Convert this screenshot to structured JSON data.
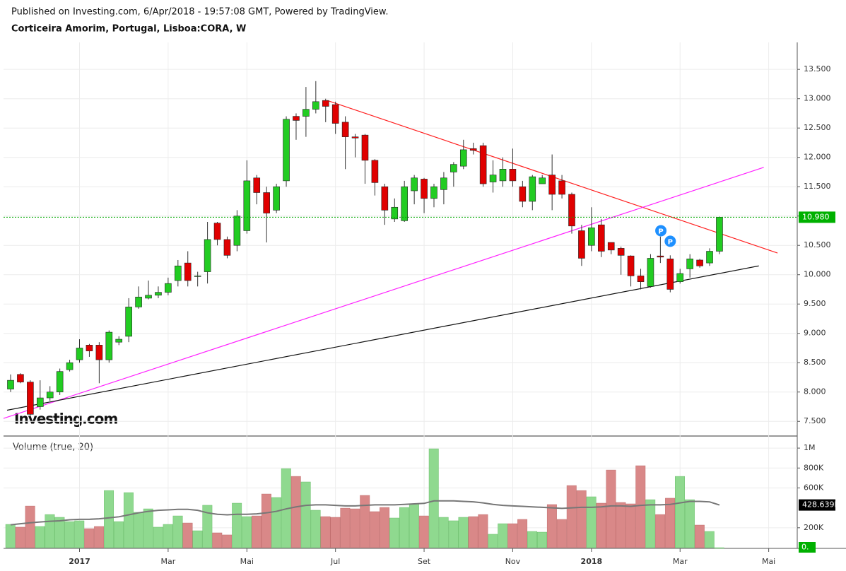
{
  "chart_data": {
    "type": "candlestick",
    "published": "Published on Investing.com, 6/Apr/2018 - 19:57:08 GMT, Powered by TradingView.",
    "title": "Corticeira Amorim, Portugal, Lisboa:CORA, W",
    "watermark": "Investing.com",
    "volume_title": "Volume (true, 20)",
    "categories": [
      null,
      null,
      null,
      null,
      null,
      null,
      null,
      "2017",
      null,
      null,
      null,
      null,
      null,
      null,
      null,
      null,
      "Mar",
      null,
      null,
      null,
      null,
      null,
      null,
      null,
      "Mai",
      null,
      null,
      null,
      null,
      null,
      null,
      null,
      null,
      "Jul",
      null,
      null,
      null,
      null,
      null,
      null,
      null,
      null,
      "Set",
      null,
      null,
      null,
      null,
      null,
      null,
      null,
      null,
      "Nov",
      null,
      null,
      null,
      null,
      null,
      null,
      null,
      "2018",
      null,
      null,
      null,
      null,
      null,
      null,
      null,
      null,
      "Mar",
      null,
      null,
      null,
      null,
      null,
      null,
      null,
      null,
      "Mai"
    ],
    "open": [
      8.05,
      8.3,
      8.17,
      7.75,
      7.9,
      8.0,
      8.38,
      8.55,
      8.8,
      8.8,
      8.55,
      8.85,
      8.95,
      9.45,
      9.6,
      9.65,
      9.7,
      9.9,
      10.2,
      9.98,
      10.05,
      10.88,
      10.6,
      10.5,
      10.75,
      11.65,
      11.4,
      11.1,
      11.6,
      12.7,
      12.7,
      12.82,
      12.97,
      12.9,
      12.6,
      12.35,
      12.38,
      11.95,
      11.5,
      10.95,
      10.92,
      11.43,
      11.63,
      11.3,
      11.45,
      11.75,
      11.85,
      12.15,
      12.2,
      11.58,
      11.6,
      11.8,
      11.5,
      11.25,
      11.55,
      11.7,
      11.6,
      11.37,
      10.75,
      10.5,
      10.85,
      10.55,
      10.45,
      10.32,
      9.98,
      9.8,
      10.32,
      10.27,
      9.88,
      10.1,
      10.25,
      10.2,
      10.4,
      null,
      null,
      null,
      null,
      null
    ],
    "high": [
      8.3,
      8.32,
      8.2,
      8.2,
      8.1,
      8.4,
      8.55,
      8.9,
      8.82,
      8.85,
      9.05,
      8.95,
      9.6,
      9.8,
      9.9,
      9.8,
      9.95,
      10.25,
      10.4,
      10.05,
      10.9,
      10.9,
      10.65,
      11.1,
      11.95,
      11.7,
      11.5,
      11.55,
      12.7,
      12.75,
      13.2,
      13.3,
      13.0,
      12.95,
      12.7,
      12.4,
      12.4,
      11.97,
      11.55,
      11.3,
      11.6,
      11.7,
      11.65,
      11.55,
      11.75,
      11.92,
      12.3,
      12.25,
      12.25,
      11.95,
      12.0,
      12.15,
      11.6,
      11.7,
      11.7,
      12.05,
      11.7,
      11.4,
      10.85,
      11.15,
      10.95,
      10.55,
      10.48,
      10.33,
      10.1,
      10.35,
      10.65,
      10.33,
      10.1,
      10.35,
      10.27,
      10.45,
      10.99,
      null,
      null,
      null,
      null,
      null
    ],
    "low": [
      8.0,
      8.15,
      7.6,
      7.7,
      7.85,
      7.95,
      8.35,
      8.5,
      8.6,
      8.15,
      8.5,
      8.8,
      8.85,
      9.42,
      9.58,
      9.6,
      9.65,
      9.8,
      9.8,
      9.8,
      9.85,
      10.5,
      10.28,
      10.4,
      10.7,
      11.2,
      10.55,
      11.05,
      11.5,
      12.3,
      12.35,
      12.75,
      12.6,
      12.4,
      11.8,
      12.0,
      11.55,
      11.35,
      10.85,
      10.9,
      10.9,
      11.2,
      11.05,
      11.15,
      11.2,
      11.5,
      11.8,
      12.05,
      11.5,
      11.4,
      11.5,
      11.5,
      11.15,
      11.1,
      11.55,
      11.1,
      11.3,
      10.7,
      10.15,
      10.4,
      10.3,
      10.35,
      10.0,
      9.8,
      9.75,
      9.78,
      10.2,
      9.7,
      9.85,
      9.95,
      10.12,
      10.15,
      10.35,
      null,
      null,
      null,
      null,
      null
    ],
    "close": [
      8.2,
      8.17,
      7.62,
      7.9,
      8.0,
      8.35,
      8.5,
      8.75,
      8.7,
      8.55,
      9.02,
      8.9,
      9.45,
      9.62,
      9.65,
      9.7,
      9.85,
      10.15,
      9.9,
      9.98,
      10.6,
      10.6,
      10.33,
      11.0,
      11.6,
      11.4,
      11.05,
      11.5,
      12.65,
      12.63,
      12.82,
      12.95,
      12.87,
      12.58,
      12.35,
      12.33,
      11.95,
      11.57,
      11.1,
      11.15,
      11.5,
      11.65,
      11.3,
      11.5,
      11.65,
      11.88,
      12.13,
      12.12,
      11.55,
      11.7,
      11.8,
      11.6,
      11.25,
      11.67,
      11.65,
      11.37,
      11.37,
      10.83,
      10.28,
      10.8,
      10.4,
      10.42,
      10.33,
      9.98,
      9.88,
      10.28,
      10.3,
      9.75,
      10.02,
      10.27,
      10.15,
      10.4,
      10.98,
      null,
      null,
      null,
      null,
      null
    ],
    "close_value_labels": [
      null,
      null,
      null,
      null,
      null,
      null,
      null,
      null,
      null,
      null,
      null,
      null,
      null,
      null,
      null,
      null,
      null,
      null,
      null,
      null,
      null,
      null,
      null,
      null,
      null,
      null,
      null,
      null,
      null,
      null,
      null,
      null,
      null,
      null,
      null,
      null,
      null,
      null,
      null,
      null,
      null,
      null,
      null,
      null,
      null,
      null,
      null,
      null,
      null,
      null,
      null,
      null,
      null,
      null,
      null,
      null,
      null,
      null,
      null,
      null,
      null,
      null,
      null,
      null,
      null,
      null,
      null,
      null,
      null,
      null,
      null,
      null,
      "10.980",
      null,
      null,
      null,
      null,
      null
    ],
    "volume": [
      234000,
      206000,
      418000,
      213000,
      333000,
      305000,
      262000,
      270000,
      191000,
      213000,
      574000,
      262000,
      553000,
      355000,
      390000,
      206000,
      234000,
      319000,
      248000,
      170000,
      426000,
      149000,
      128000,
      447000,
      312000,
      319000,
      539000,
      504000,
      794000,
      716000,
      660000,
      376000,
      312000,
      305000,
      397000,
      390000,
      525000,
      362000,
      404000,
      298000,
      404000,
      440000,
      319000,
      993000,
      305000,
      270000,
      305000,
      312000,
      333000,
      135000,
      241000,
      241000,
      284000,
      163000,
      156000,
      433000,
      284000,
      624000,
      574000,
      511000,
      447000,
      780000,
      454000,
      440000,
      823000,
      482000,
      333000,
      497000,
      716000,
      482000,
      227000,
      163000,
      0,
      null,
      null,
      null,
      null,
      null
    ],
    "volume_value_labels": [
      null,
      null,
      null,
      null,
      null,
      null,
      null,
      null,
      null,
      null,
      null,
      null,
      null,
      null,
      null,
      null,
      null,
      null,
      null,
      null,
      null,
      null,
      null,
      null,
      null,
      null,
      null,
      null,
      null,
      null,
      null,
      null,
      null,
      null,
      null,
      null,
      null,
      null,
      null,
      null,
      null,
      null,
      null,
      null,
      null,
      null,
      null,
      null,
      null,
      null,
      null,
      null,
      null,
      null,
      null,
      null,
      null,
      null,
      null,
      null,
      null,
      null,
      null,
      null,
      null,
      null,
      null,
      null,
      null,
      null,
      null,
      null,
      "0.",
      null,
      null,
      null,
      null,
      null
    ],
    "volume_ma": [
      230000,
      240000,
      250000,
      258000,
      265000,
      270000,
      280000,
      285000,
      285000,
      290000,
      300000,
      310000,
      330000,
      350000,
      365000,
      375000,
      380000,
      385000,
      385000,
      375000,
      350000,
      335000,
      330000,
      335000,
      335000,
      340000,
      350000,
      365000,
      390000,
      410000,
      425000,
      430000,
      430000,
      425000,
      420000,
      420000,
      425000,
      430000,
      430000,
      430000,
      435000,
      440000,
      445000,
      470000,
      470000,
      470000,
      465000,
      460000,
      450000,
      435000,
      425000,
      420000,
      415000,
      410000,
      405000,
      400000,
      395000,
      400000,
      405000,
      405000,
      410000,
      420000,
      420000,
      415000,
      425000,
      430000,
      430000,
      435000,
      450000,
      465000,
      465000,
      460000,
      428639,
      null,
      null,
      null,
      null,
      null
    ],
    "volume_ma_value_labels": [
      null,
      null,
      null,
      null,
      null,
      null,
      null,
      null,
      null,
      null,
      null,
      null,
      null,
      null,
      null,
      null,
      null,
      null,
      null,
      null,
      null,
      null,
      null,
      null,
      null,
      null,
      null,
      null,
      null,
      null,
      null,
      null,
      null,
      null,
      null,
      null,
      null,
      null,
      null,
      null,
      null,
      null,
      null,
      null,
      null,
      null,
      null,
      null,
      null,
      null,
      null,
      null,
      null,
      null,
      null,
      null,
      null,
      null,
      null,
      null,
      null,
      null,
      null,
      null,
      null,
      null,
      null,
      null,
      null,
      null,
      null,
      null,
      "428.639K",
      null,
      null,
      null,
      null,
      null
    ],
    "up_color": "#22cc22",
    "down_color": "#e00000",
    "volume_up_color": "#8fd98f",
    "volume_down_color": "#d98888",
    "volume_ma_color": "#777777",
    "ylim": [
      7.25,
      13.96
    ],
    "yticks": [
      {
        "value": 7.5,
        "label": "7.500"
      },
      {
        "value": 8,
        "label": "8.000"
      },
      {
        "value": 8.5,
        "label": "8.500"
      },
      {
        "value": 9,
        "label": "9.000"
      },
      {
        "value": 9.5,
        "label": "9.500"
      },
      {
        "value": 10,
        "label": "10.000"
      },
      {
        "value": 10.5,
        "label": "10.500"
      },
      {
        "value": 11,
        "label": "11.000"
      },
      {
        "value": 11.5,
        "label": "11.500"
      },
      {
        "value": 12,
        "label": "12.000"
      },
      {
        "value": 12.5,
        "label": "12.500"
      },
      {
        "value": 13,
        "label": "13.000"
      },
      {
        "value": 13.5,
        "label": "13.500"
      }
    ],
    "volume_ylim": [
      0,
      1100000
    ],
    "volume_yticks": [
      {
        "value": 200000,
        "label": "200K"
      },
      {
        "value": 600000,
        "label": "600K"
      },
      {
        "value": 800000,
        "label": "800K"
      },
      {
        "value": 1000000,
        "label": "1M"
      }
    ],
    "grid": true,
    "trendlines": [
      {
        "color": "#ff2020",
        "x": [
          32.16,
          77.9
        ],
        "y": [
          12.97,
          10.37
        ]
      },
      {
        "color": "#ff22ff",
        "x": [
          -0.72,
          76.5
        ],
        "y": [
          7.55,
          11.83
        ]
      },
      {
        "color": "#111111",
        "x": [
          -0.36,
          76.0
        ],
        "y": [
          7.69,
          10.15
        ]
      }
    ],
    "annotations": [
      {
        "text": "P",
        "x": 66.05,
        "y": 10.75
      },
      {
        "text": "P",
        "x": 67.0,
        "y": 10.57
      }
    ]
  }
}
